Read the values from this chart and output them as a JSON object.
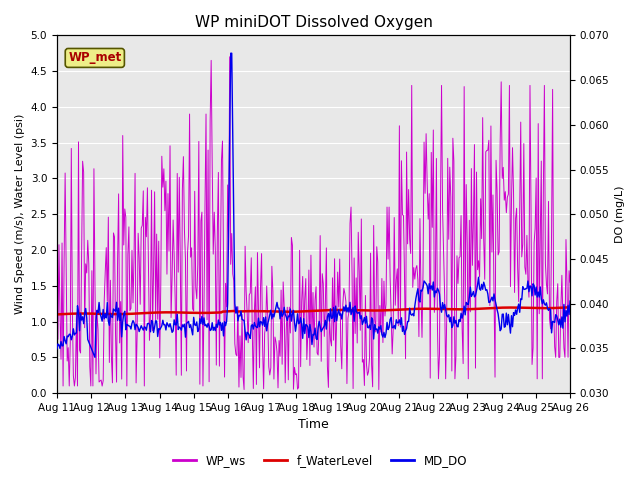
{
  "title": "WP miniDOT Dissolved Oxygen",
  "xlabel": "Time",
  "ylabel_left": "Wind Speed (m/s), Water Level (psi)",
  "ylabel_right": "DO (mg/L)",
  "ylim_left": [
    0.0,
    5.0
  ],
  "ylim_right": [
    0.03,
    0.07
  ],
  "yticks_left": [
    0.0,
    0.5,
    1.0,
    1.5,
    2.0,
    2.5,
    3.0,
    3.5,
    4.0,
    4.5,
    5.0
  ],
  "yticks_right": [
    0.03,
    0.035,
    0.04,
    0.045,
    0.05,
    0.055,
    0.06,
    0.065,
    0.07
  ],
  "xtick_labels": [
    "Aug 11",
    "Aug 12",
    "Aug 13",
    "Aug 14",
    "Aug 15",
    "Aug 16",
    "Aug 17",
    "Aug 18",
    "Aug 19",
    "Aug 20",
    "Aug 21",
    "Aug 22",
    "Aug 23",
    "Aug 24",
    "Aug 25",
    "Aug 26"
  ],
  "n_days": 15,
  "n_points": 500,
  "bg_color": "#e8e8e8",
  "line_color_ws": "#cc00cc",
  "line_color_wl": "#dd0000",
  "line_color_do": "#0000ee",
  "legend_box_fill": "#eeee88",
  "legend_box_edge": "#555500",
  "legend_box_text": "WP_met",
  "legend_box_text_color": "#aa0000",
  "grid_color": "#ffffff",
  "fig_bg": "#ffffff"
}
